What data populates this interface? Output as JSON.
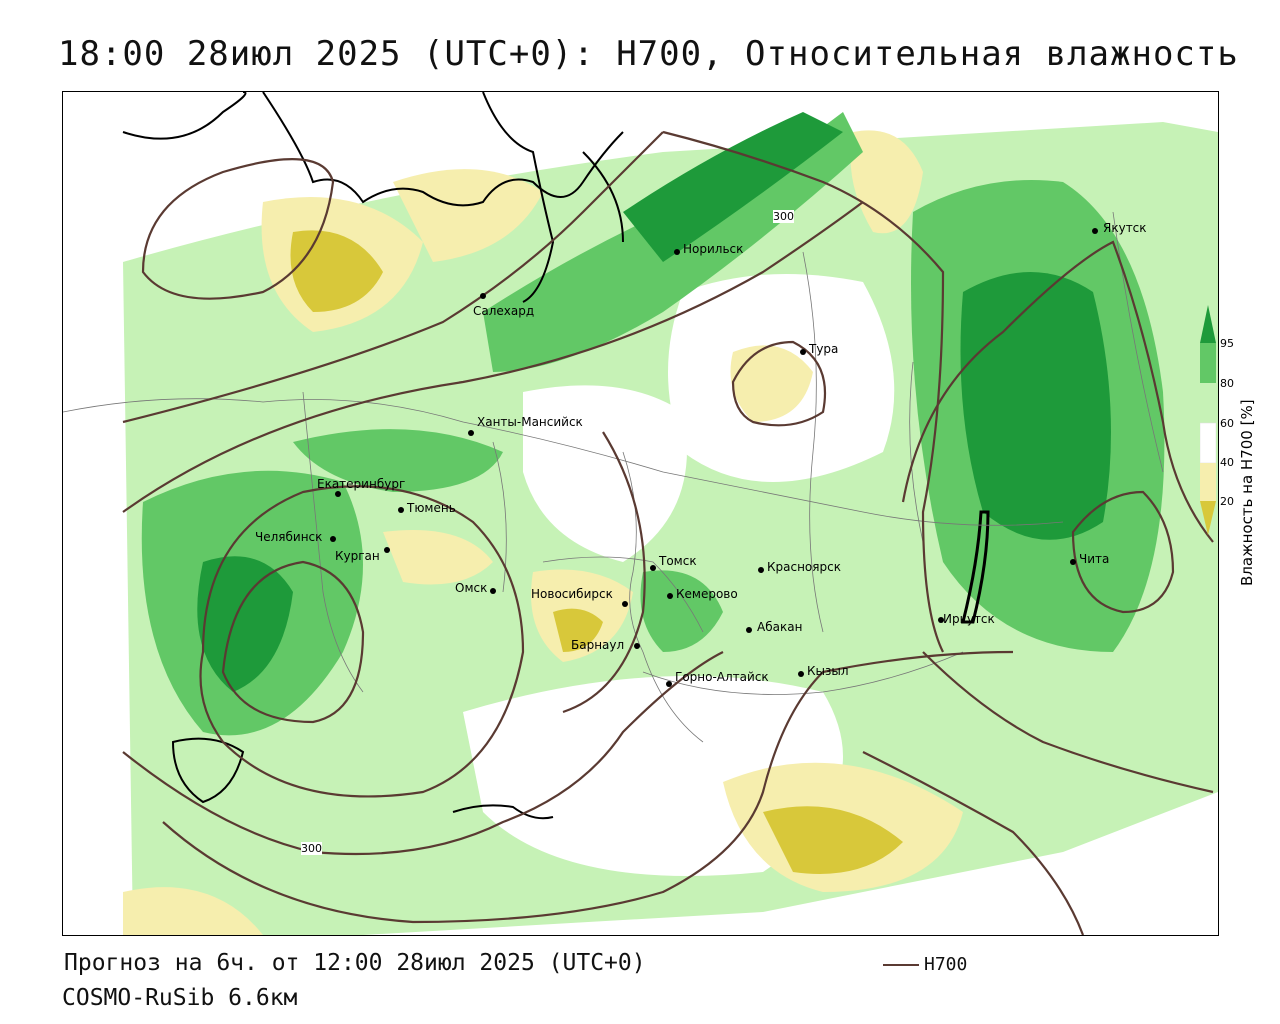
{
  "title": "18:00 28июл 2025 (UTC+0): H700, Относительная влажность",
  "footer": {
    "forecast": "Прогноз на 6ч. от 12:00 28июл 2025 (UTC+0)",
    "model": "COSMO-RuSib 6.6км"
  },
  "legend": {
    "line_label": "H700",
    "line_color": "#5a3a32"
  },
  "colorbar": {
    "title": "Влажность на H700 [%]",
    "ticks": [
      "95",
      "80",
      "60",
      "40",
      "20"
    ],
    "colors": {
      "very_dry": "#d8c83a",
      "dry": "#f6eeae",
      "mid": "#ffffff",
      "moist": "#c6f2b6",
      "wet": "#62c866",
      "saturated": "#1e9a3a"
    }
  },
  "contour_labels": [
    "300",
    "300"
  ],
  "cities": [
    {
      "name": "Якутск"
    },
    {
      "name": "Норильск"
    },
    {
      "name": "Салехард"
    },
    {
      "name": "Тура"
    },
    {
      "name": "Ханты-Мансийск"
    },
    {
      "name": "Екатеринбург"
    },
    {
      "name": "Тюмень"
    },
    {
      "name": "Челябинск"
    },
    {
      "name": "Курган"
    },
    {
      "name": "Омск"
    },
    {
      "name": "Новосибирск"
    },
    {
      "name": "Томск"
    },
    {
      "name": "Кемерово"
    },
    {
      "name": "Красноярск"
    },
    {
      "name": "Барнаул"
    },
    {
      "name": "Абакан"
    },
    {
      "name": "Горно-Алтайск"
    },
    {
      "name": "Кызыл"
    },
    {
      "name": "Иркутск"
    },
    {
      "name": "Чита"
    }
  ]
}
